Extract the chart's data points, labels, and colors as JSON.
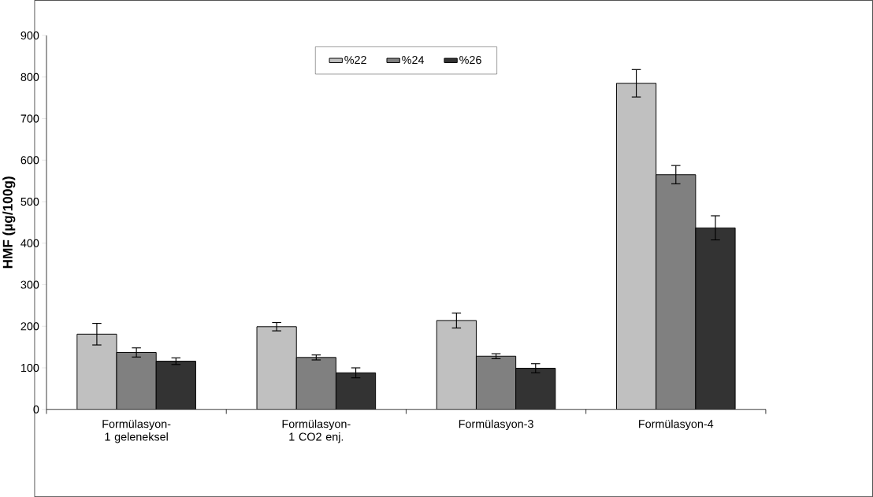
{
  "chart_data": {
    "type": "bar",
    "ylabel": "HMF (µg/100g)",
    "categories": [
      "Formülasyon-1 geleneksel",
      "Formülasyon-1 CO2 enj.",
      "Formülasyon-3",
      "Formülasyon-4"
    ],
    "series": [
      {
        "name": "%22",
        "color": "#c0c0c0",
        "values": [
          181,
          199,
          214,
          785
        ],
        "errors": [
          26,
          10,
          18,
          33
        ]
      },
      {
        "name": "%24",
        "color": "#808080",
        "values": [
          137,
          125,
          128,
          565
        ],
        "errors": [
          11,
          6,
          6,
          22
        ]
      },
      {
        "name": "%26",
        "color": "#333333",
        "values": [
          116,
          88,
          99,
          437
        ],
        "errors": [
          8,
          12,
          11,
          29
        ]
      }
    ],
    "ylim": [
      0,
      900
    ],
    "yticks": [
      0,
      100,
      200,
      300,
      400,
      500,
      600,
      700,
      800,
      900
    ],
    "legend": "top"
  }
}
